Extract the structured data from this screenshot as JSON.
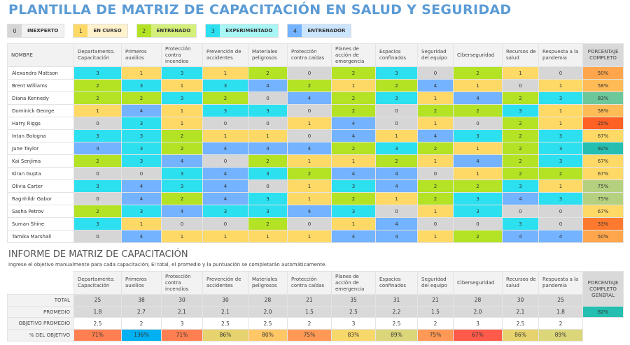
{
  "title": "PLANTILLA DE MATRIZ DE CAPACITACIÓN EN SALUD Y SEGURIDAD",
  "legend": [
    {
      "value": "0",
      "label": "INEXPERTO",
      "color": "#d6d6d6",
      "light": "#f2f2f2"
    },
    {
      "value": "1",
      "label": "EN CURSO",
      "color": "#ffd966",
      "light": "#fff2cc"
    },
    {
      "value": "2",
      "label": "ENTRENADO",
      "color": "#b3e324",
      "light": "#d4f07a"
    },
    {
      "value": "3",
      "label": "EXPERIMENTADO",
      "color": "#2ce0f0",
      "light": "#a8f5f5"
    },
    {
      "value": "4",
      "label": "ENTRENADOR",
      "color": "#73b3ff",
      "light": "#cce5ff"
    }
  ],
  "level_colors": [
    "#d6d6d6",
    "#ffd966",
    "#b3e324",
    "#2ce0f0",
    "#73b3ff"
  ],
  "name_header": "NOMBRE",
  "pct_header": "PORCENTAJE COMPLETO",
  "columns": [
    "Departamento. Capacitación",
    "Primeros auxilios",
    "Protección contra incendios",
    "Prevención de accidentes",
    "Materiales peligrosos",
    "Protección contra caídas",
    "Planes de acción de emergencia",
    "Espacios confinados",
    "Seguridad del equipo",
    "Ciberseguridad",
    "Recursos de salud",
    "Respuesta a la pandemia"
  ],
  "rows": [
    {
      "name": "Alexandra Mattson",
      "values": [
        3,
        1,
        3,
        1,
        2,
        0,
        2,
        3,
        0,
        2,
        1,
        0
      ],
      "pct": "50%",
      "pct_color": "#ffa64d"
    },
    {
      "name": "Brent Williams",
      "values": [
        2,
        3,
        1,
        3,
        4,
        2,
        1,
        2,
        4,
        1,
        0,
        1
      ],
      "pct": "58%",
      "pct_color": "#ffbb55"
    },
    {
      "name": "Diana Kennedy",
      "values": [
        2,
        2,
        3,
        2,
        0,
        4,
        2,
        3,
        1,
        4,
        2,
        3
      ],
      "pct": "83%",
      "pct_color": "#6cc79a"
    },
    {
      "name": "Dominick George",
      "values": [
        1,
        4,
        1,
        3,
        3,
        0,
        2,
        0,
        2,
        2,
        3,
        1
      ],
      "pct": "58%",
      "pct_color": "#ffbb55"
    },
    {
      "name": "Harry Riggs",
      "values": [
        0,
        3,
        1,
        0,
        0,
        1,
        4,
        0,
        1,
        0,
        2,
        1
      ],
      "pct": "25%",
      "pct_color": "#ff6024"
    },
    {
      "name": "Intan Bologna",
      "values": [
        3,
        3,
        2,
        1,
        1,
        0,
        4,
        1,
        4,
        3,
        2,
        3
      ],
      "pct": "67%",
      "pct_color": "#ffd966"
    },
    {
      "name": "June Taylor",
      "values": [
        4,
        3,
        2,
        4,
        4,
        4,
        2,
        3,
        2,
        1,
        2,
        3
      ],
      "pct": "92%",
      "pct_color": "#24bfb0"
    },
    {
      "name": "Kai Senjima",
      "values": [
        2,
        3,
        4,
        0,
        2,
        1,
        1,
        2,
        1,
        4,
        2,
        3
      ],
      "pct": "67%",
      "pct_color": "#ffd966"
    },
    {
      "name": "Kiran Gupta",
      "values": [
        0,
        0,
        3,
        4,
        3,
        2,
        4,
        4,
        0,
        1,
        2,
        2
      ],
      "pct": "67%",
      "pct_color": "#ffd966"
    },
    {
      "name": "Olivia Carter",
      "values": [
        3,
        4,
        3,
        4,
        0,
        1,
        3,
        4,
        2,
        2,
        3,
        1
      ],
      "pct": "75%",
      "pct_color": "#b5d17f"
    },
    {
      "name": "Ragnhildr Gabor",
      "values": [
        0,
        4,
        2,
        4,
        3,
        1,
        2,
        1,
        2,
        3,
        4,
        3
      ],
      "pct": "75%",
      "pct_color": "#b5d17f"
    },
    {
      "name": "Sasha Petrov",
      "values": [
        2,
        3,
        4,
        3,
        3,
        4,
        3,
        0,
        1,
        3,
        0,
        0
      ],
      "pct": "67%",
      "pct_color": "#ffd966"
    },
    {
      "name": "Suman Shine",
      "values": [
        3,
        1,
        0,
        0,
        2,
        0,
        1,
        4,
        0,
        0,
        3,
        0
      ],
      "pct": "33%",
      "pct_color": "#ff7a2e"
    },
    {
      "name": "Tamika Marshall",
      "values": [
        0,
        4,
        1,
        1,
        1,
        1,
        4,
        4,
        1,
        2,
        4,
        4
      ],
      "pct": "50%",
      "pct_color": "#ffa64d"
    }
  ],
  "report": {
    "title": "INFORME DE MATRIZ DE CAPACITACIÓN",
    "subtitle": "Ingrese el objetivo manualmente para cada capacitación; El total, el promedio y la puntuación se completarán automáticamente.",
    "overall_header": "PORCENTAJE COMPLETO GENERAL",
    "overall_value": "62%",
    "overall_color": "#24bfb0",
    "total_label": "TOTAL",
    "totals": [
      "25",
      "38",
      "30",
      "30",
      "28",
      "21",
      "35",
      "31",
      "21",
      "28",
      "30",
      "25"
    ],
    "avg_label": "PROMEDIO",
    "averages": [
      "1.8",
      "2.7",
      "2.1",
      "2.1",
      "2.0",
      "1.5",
      "2.5",
      "2.2",
      "1.5",
      "2.0",
      "2.1",
      "1.8"
    ],
    "target_label": "OBJETIVO PROMEDIO",
    "targets": [
      "2.5",
      "2",
      "3",
      "2.5",
      "2.5",
      "2",
      "3",
      "2.5",
      "2",
      "3",
      "2.5",
      "2"
    ],
    "pct_label": "% DEL OBJETIVO",
    "pcts": [
      "71%",
      "136%",
      "71%",
      "86%",
      "80%",
      "75%",
      "83%",
      "89%",
      "75%",
      "67%",
      "86%",
      "89%"
    ],
    "pct_colors": [
      "#ff7f50",
      "#00b0f0",
      "#ff7f50",
      "#e6d36e",
      "#ffc766",
      "#ff9955",
      "#f7d86a",
      "#dcd67a",
      "#ff9955",
      "#ff5a4a",
      "#e6d36e",
      "#dcd67a"
    ]
  }
}
